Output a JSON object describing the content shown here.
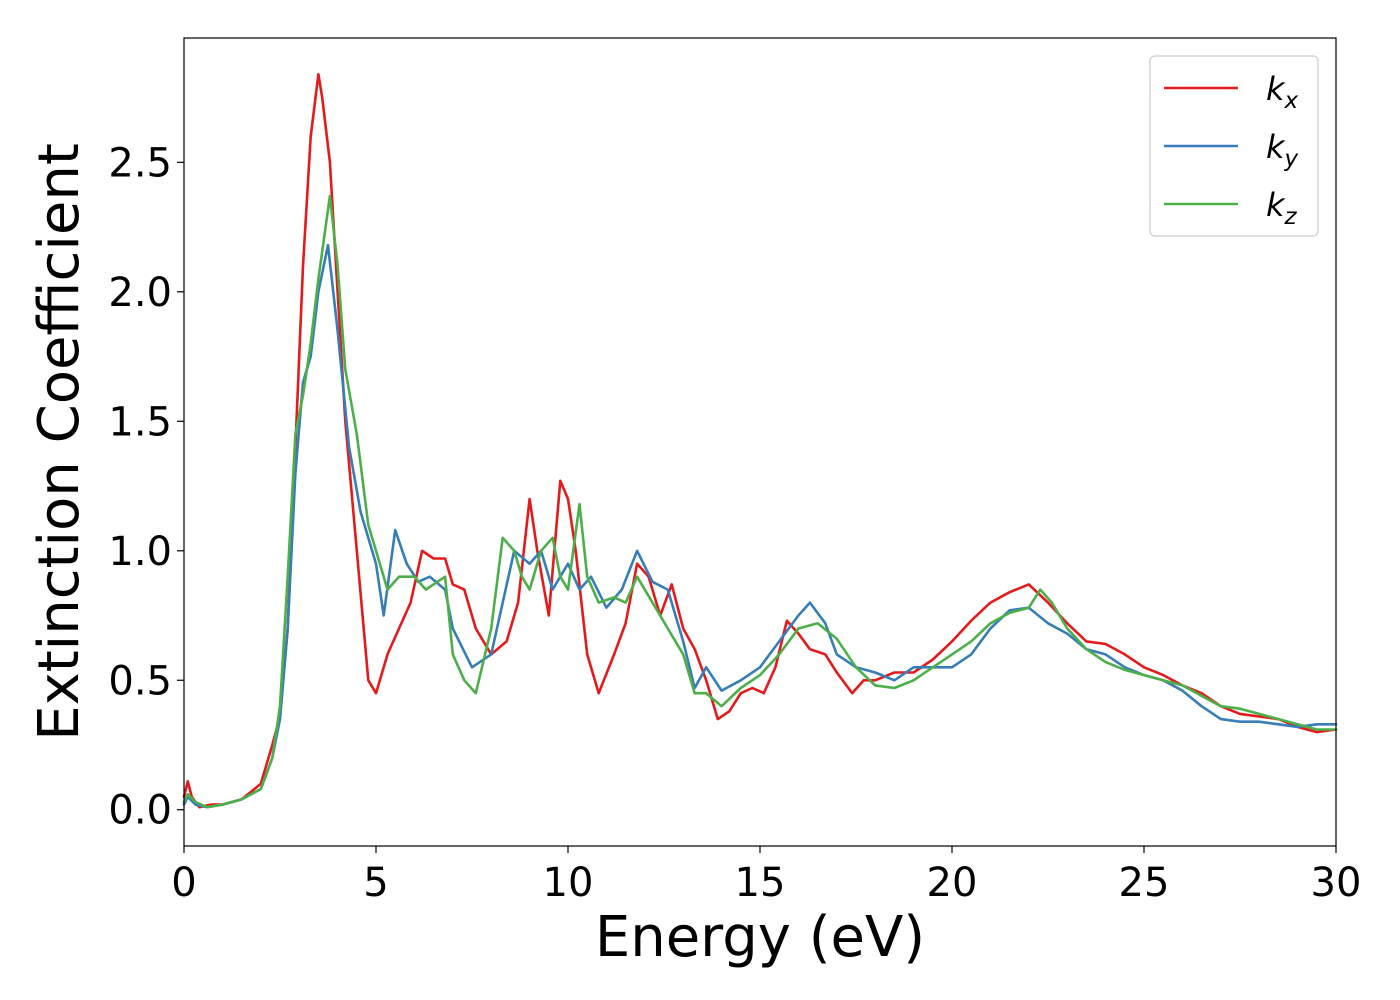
{
  "chart_data": {
    "type": "line",
    "title": "",
    "xlabel": "Energy (eV)",
    "ylabel": "Extinction Coefficient",
    "xlim": [
      0,
      30
    ],
    "ylim": [
      -0.14,
      2.98
    ],
    "xticks": [
      0,
      5,
      10,
      15,
      20,
      25,
      30
    ],
    "xtick_labels": [
      "0",
      "5",
      "10",
      "15",
      "20",
      "25",
      "30"
    ],
    "yticks": [
      0.0,
      0.5,
      1.0,
      1.5,
      2.0,
      2.5
    ],
    "ytick_labels": [
      "0.0",
      "0.5",
      "1.0",
      "1.5",
      "2.0",
      "2.5"
    ],
    "grid": false,
    "legend_position": "top-right",
    "series": [
      {
        "name": "k_x",
        "label_base": "k",
        "label_sub": "x",
        "color": "#e41a1c",
        "x": [
          0,
          0.1,
          0.2,
          0.4,
          0.7,
          1.0,
          1.5,
          2.0,
          2.3,
          2.5,
          2.7,
          2.9,
          3.1,
          3.3,
          3.5,
          3.6,
          3.8,
          4.0,
          4.2,
          4.5,
          4.8,
          5.0,
          5.3,
          5.6,
          5.9,
          6.2,
          6.5,
          6.8,
          7.0,
          7.3,
          7.6,
          8.0,
          8.4,
          8.7,
          9.0,
          9.2,
          9.5,
          9.8,
          10.0,
          10.2,
          10.5,
          10.8,
          11.2,
          11.5,
          11.8,
          12.1,
          12.4,
          12.7,
          13.0,
          13.3,
          13.6,
          13.9,
          14.2,
          14.5,
          14.8,
          15.1,
          15.4,
          15.7,
          16.0,
          16.3,
          16.7,
          17.0,
          17.4,
          17.7,
          18.0,
          18.5,
          19.0,
          19.5,
          20.0,
          20.5,
          21.0,
          21.5,
          22.0,
          22.5,
          23.0,
          23.5,
          24.0,
          24.5,
          25.0,
          25.5,
          26.0,
          26.5,
          27.0,
          27.5,
          28.0,
          28.5,
          29.0,
          29.5,
          30.0
        ],
        "values": [
          0.05,
          0.11,
          0.05,
          0.01,
          0.02,
          0.02,
          0.04,
          0.1,
          0.25,
          0.36,
          0.7,
          1.4,
          2.1,
          2.6,
          2.84,
          2.75,
          2.5,
          2.0,
          1.5,
          1.0,
          0.5,
          0.45,
          0.6,
          0.7,
          0.8,
          1.0,
          0.97,
          0.97,
          0.87,
          0.85,
          0.7,
          0.6,
          0.65,
          0.8,
          1.2,
          1.0,
          0.75,
          1.27,
          1.2,
          1.0,
          0.6,
          0.45,
          0.6,
          0.72,
          0.95,
          0.9,
          0.75,
          0.87,
          0.7,
          0.62,
          0.5,
          0.35,
          0.38,
          0.45,
          0.47,
          0.45,
          0.55,
          0.73,
          0.68,
          0.62,
          0.6,
          0.53,
          0.45,
          0.5,
          0.5,
          0.53,
          0.53,
          0.58,
          0.65,
          0.73,
          0.8,
          0.84,
          0.87,
          0.8,
          0.72,
          0.65,
          0.64,
          0.6,
          0.55,
          0.52,
          0.48,
          0.45,
          0.4,
          0.37,
          0.36,
          0.35,
          0.32,
          0.3,
          0.31
        ]
      },
      {
        "name": "k_y",
        "label_base": "k",
        "label_sub": "y",
        "color": "#377eb8",
        "x": [
          0,
          0.1,
          0.3,
          0.6,
          1.0,
          1.5,
          2.0,
          2.3,
          2.5,
          2.7,
          2.9,
          3.1,
          3.3,
          3.5,
          3.75,
          4.0,
          4.3,
          4.6,
          5.0,
          5.2,
          5.5,
          5.8,
          6.1,
          6.4,
          6.8,
          7.0,
          7.5,
          8.0,
          8.3,
          8.6,
          9.0,
          9.3,
          9.6,
          10.0,
          10.3,
          10.6,
          11.0,
          11.4,
          11.8,
          12.2,
          12.6,
          13.0,
          13.3,
          13.6,
          14.0,
          14.5,
          15.0,
          15.5,
          16.0,
          16.3,
          16.7,
          17.0,
          17.5,
          18.0,
          18.5,
          19.0,
          19.5,
          20.0,
          20.5,
          21.0,
          21.5,
          22.0,
          22.5,
          23.0,
          23.5,
          24.0,
          24.5,
          25.0,
          25.5,
          26.0,
          26.5,
          27.0,
          27.5,
          28.0,
          28.5,
          29.0,
          29.5,
          30.0
        ],
        "values": [
          0.02,
          0.05,
          0.02,
          0.01,
          0.02,
          0.04,
          0.08,
          0.2,
          0.35,
          0.7,
          1.3,
          1.65,
          1.75,
          2.0,
          2.18,
          1.85,
          1.4,
          1.15,
          0.95,
          0.75,
          1.08,
          0.95,
          0.88,
          0.9,
          0.85,
          0.7,
          0.55,
          0.6,
          0.8,
          1.0,
          0.95,
          1.0,
          0.85,
          0.95,
          0.85,
          0.9,
          0.78,
          0.85,
          1.0,
          0.88,
          0.85,
          0.65,
          0.47,
          0.55,
          0.46,
          0.5,
          0.55,
          0.65,
          0.75,
          0.8,
          0.72,
          0.6,
          0.55,
          0.53,
          0.5,
          0.55,
          0.55,
          0.55,
          0.6,
          0.7,
          0.77,
          0.78,
          0.72,
          0.68,
          0.62,
          0.6,
          0.55,
          0.52,
          0.5,
          0.46,
          0.4,
          0.35,
          0.34,
          0.34,
          0.33,
          0.32,
          0.33,
          0.33
        ]
      },
      {
        "name": "k_z",
        "label_base": "k",
        "label_sub": "z",
        "color": "#4daf4a",
        "x": [
          0,
          0.1,
          0.3,
          0.6,
          1.0,
          1.5,
          2.0,
          2.3,
          2.5,
          2.7,
          2.9,
          3.1,
          3.3,
          3.5,
          3.8,
          4.0,
          4.2,
          4.5,
          4.8,
          5.0,
          5.3,
          5.6,
          6.0,
          6.3,
          6.6,
          6.8,
          7.0,
          7.3,
          7.6,
          8.0,
          8.3,
          8.6,
          8.8,
          9.0,
          9.3,
          9.6,
          9.8,
          10.0,
          10.3,
          10.5,
          10.8,
          11.2,
          11.5,
          11.8,
          12.2,
          12.6,
          13.0,
          13.3,
          13.6,
          14.0,
          14.5,
          15.0,
          15.5,
          16.0,
          16.5,
          17.0,
          17.5,
          18.0,
          18.5,
          19.0,
          19.5,
          20.0,
          20.5,
          21.0,
          21.5,
          22.0,
          22.3,
          22.6,
          23.0,
          23.5,
          24.0,
          24.5,
          25.0,
          25.5,
          26.0,
          26.5,
          27.0,
          27.5,
          28.0,
          28.5,
          29.0,
          29.5,
          30.0
        ],
        "values": [
          0.03,
          0.06,
          0.03,
          0.01,
          0.02,
          0.04,
          0.08,
          0.2,
          0.4,
          0.9,
          1.45,
          1.6,
          1.8,
          2.05,
          2.37,
          2.1,
          1.7,
          1.45,
          1.1,
          1.0,
          0.85,
          0.9,
          0.9,
          0.85,
          0.88,
          0.9,
          0.6,
          0.5,
          0.45,
          0.7,
          1.05,
          1.0,
          0.9,
          0.85,
          1.0,
          1.05,
          0.9,
          0.85,
          1.18,
          0.9,
          0.8,
          0.82,
          0.8,
          0.9,
          0.8,
          0.7,
          0.6,
          0.45,
          0.45,
          0.4,
          0.47,
          0.52,
          0.6,
          0.7,
          0.72,
          0.66,
          0.55,
          0.48,
          0.47,
          0.5,
          0.55,
          0.6,
          0.65,
          0.72,
          0.76,
          0.78,
          0.85,
          0.8,
          0.7,
          0.62,
          0.57,
          0.54,
          0.52,
          0.5,
          0.48,
          0.44,
          0.4,
          0.39,
          0.37,
          0.35,
          0.33,
          0.31,
          0.31
        ]
      }
    ]
  }
}
